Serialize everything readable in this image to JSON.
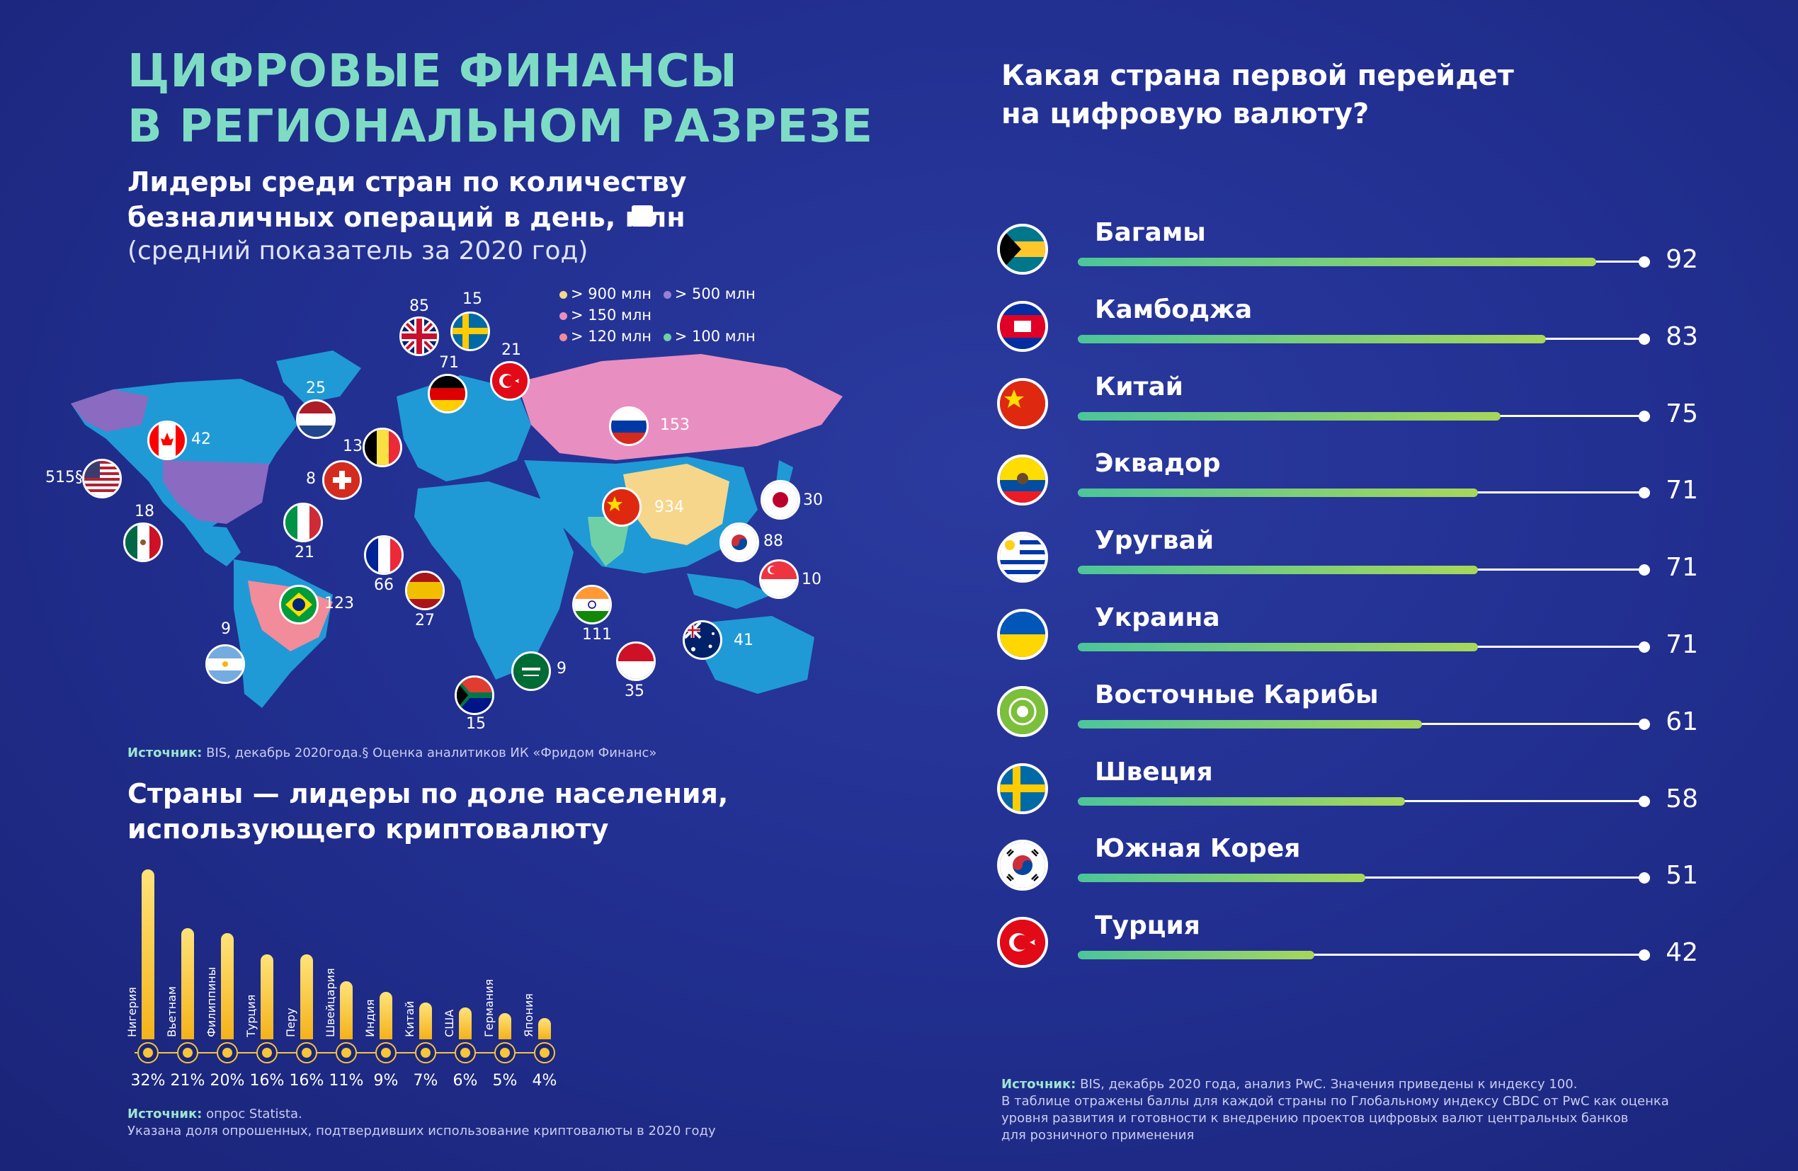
{
  "title": [
    "ЦИФРОВЫЕ ФИНАНСЫ",
    "В РЕГИОНАЛЬНОМ РАЗРЕЗЕ"
  ],
  "map_section": {
    "heading": [
      "Лидеры среди стран по количеству",
      "безналичных операций в день, млн"
    ],
    "subheading": "(средний показатель за 2020 год)",
    "legend": [
      {
        "label": "> 900 млн",
        "color": "#f6d68a"
      },
      {
        "label": "> 500 млн",
        "color": "#9a7fd1"
      },
      {
        "label": "> 150 млн",
        "color": "#e98ec0"
      },
      {
        "label": "> 120 млн",
        "color": "#f28b9a"
      },
      {
        "label": "> 100 млн",
        "color": "#6fd0a8"
      }
    ],
    "source_label": "Источник:",
    "source_text": "BIS, декабрь 2020года.§ Оценка аналитиков ИК «Фридом Финанс»"
  },
  "map_points": [
    {
      "country": "Великобритания",
      "flag": "uk",
      "value": "85"
    },
    {
      "country": "Швеция",
      "flag": "se",
      "value": "15"
    },
    {
      "country": "Турция",
      "flag": "tr",
      "value": "21"
    },
    {
      "country": "Германия",
      "flag": "de",
      "value": "71"
    },
    {
      "country": "Нидерланды",
      "flag": "nl",
      "value": "25"
    },
    {
      "country": "Бельгия",
      "flag": "be",
      "value": "13"
    },
    {
      "country": "Швейцария",
      "flag": "ch",
      "value": "8"
    },
    {
      "country": "Канада",
      "flag": "ca",
      "value": "42"
    },
    {
      "country": "США",
      "flag": "us",
      "value": "515§"
    },
    {
      "country": "Россия",
      "flag": "ru",
      "value": "153"
    },
    {
      "country": "Китай",
      "flag": "cn",
      "value": "934"
    },
    {
      "country": "Япония",
      "flag": "jp",
      "value": "30"
    },
    {
      "country": "Южная Корея",
      "flag": "kr",
      "value": "88"
    },
    {
      "country": "Сингапур",
      "flag": "sg",
      "value": "10"
    },
    {
      "country": "Мексика",
      "flag": "mx",
      "value": "18"
    },
    {
      "country": "Италия",
      "flag": "it",
      "value": "21"
    },
    {
      "country": "Франция",
      "flag": "fr",
      "value": "66"
    },
    {
      "country": "Испания",
      "flag": "es",
      "value": "27"
    },
    {
      "country": "Бразилия",
      "flag": "br",
      "value": "123"
    },
    {
      "country": "Индия",
      "flag": "in",
      "value": "111"
    },
    {
      "country": "Аргентина",
      "flag": "ar",
      "value": "9"
    },
    {
      "country": "Саудовская Аравия",
      "flag": "sa",
      "value": "9"
    },
    {
      "country": "Индонезия",
      "flag": "id",
      "value": "35"
    },
    {
      "country": "Австралия",
      "flag": "au",
      "value": "41"
    },
    {
      "country": "ЮАР",
      "flag": "za",
      "value": "15"
    }
  ],
  "crypto_section": {
    "heading": [
      "Страны — лидеры по доле населения,",
      "использующего криптовалюту"
    ],
    "source_label": "Источник:",
    "source_text": "опрос Statista.",
    "source_note": "Указана доля опрошенных, подтвердивших использование криптовалюты в 2020 году"
  },
  "cbdc_section": {
    "heading": [
      "Какая страна первой перейдет",
      "на цифровую валюту?"
    ],
    "source_label": "Источник:",
    "source_text": "BIS, декабрь 2020 года, анализ PwC. Значения приведены к индексу 100.",
    "source_note": [
      "В таблице отражены баллы для каждой страны по Глобальному индексу CBDC от PwC  как оценка",
      "уровня развития и готовности к внедрению проектов цифровых валют центральных банков",
      "для розничного применения"
    ]
  },
  "chart_data": [
    {
      "type": "bar",
      "title": "Страны — лидеры по доле населения, использующего криптовалюту",
      "categories": [
        "Нигерия",
        "Вьетнам",
        "Филиппины",
        "Турция",
        "Перу",
        "Швейцария",
        "Индия",
        "Китай",
        "США",
        "Германия",
        "Япония"
      ],
      "values": [
        32,
        21,
        20,
        16,
        16,
        11,
        9,
        7,
        6,
        5,
        4
      ],
      "value_labels": [
        "32%",
        "21%",
        "20%",
        "16%",
        "16%",
        "11%",
        "9%",
        "7%",
        "6%",
        "5%",
        "4%"
      ],
      "unit": "%",
      "ylim": [
        0,
        32
      ],
      "colors": {
        "bar": "#f5c53a"
      }
    },
    {
      "type": "bar",
      "orientation": "horizontal",
      "title": "Какая страна первой перейдет на цифровую валюту?",
      "categories": [
        "Багамы",
        "Камбоджа",
        "Китай",
        "Эквадор",
        "Уругвай",
        "Украина",
        "Восточные Карибы",
        "Швеция",
        "Южная Корея",
        "Турция"
      ],
      "flags": [
        "bs",
        "kh",
        "cn",
        "ec",
        "uy",
        "ua",
        "ec_car",
        "se",
        "kr",
        "tr"
      ],
      "values": [
        92,
        83,
        75,
        71,
        71,
        71,
        61,
        58,
        51,
        42
      ],
      "xlim": [
        0,
        100
      ],
      "colors": {
        "bar_start": "#4cc59a",
        "bar_end": "#a7d75a",
        "track": "#ffffff"
      }
    }
  ]
}
